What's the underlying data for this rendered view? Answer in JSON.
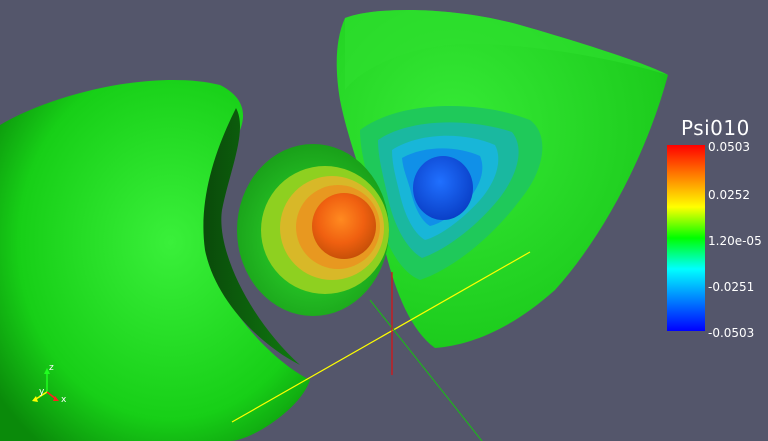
{
  "scalar_bar": {
    "title": "Psi010",
    "labels": [
      "0.0503",
      "0.0252",
      "1.20e-05",
      "-0.0251",
      "-0.0503"
    ],
    "gradient_colors": [
      "#ff0000",
      "#ff8000",
      "#ffff00",
      "#00ff00",
      "#00ffff",
      "#0080ff",
      "#0000ff"
    ]
  },
  "orientation_axes": {
    "x_label": "x",
    "y_label": "y",
    "z_label": "z",
    "x_color": "#ff2020",
    "y_color": "#ffff00",
    "z_color": "#20ff20"
  },
  "scene_colors": {
    "background": "#54566b",
    "outer_lobe": "#22dd22",
    "axis_x_line": "#ffff00",
    "axis_y_line": "#20b020",
    "axis_z_line": "#e01010"
  }
}
